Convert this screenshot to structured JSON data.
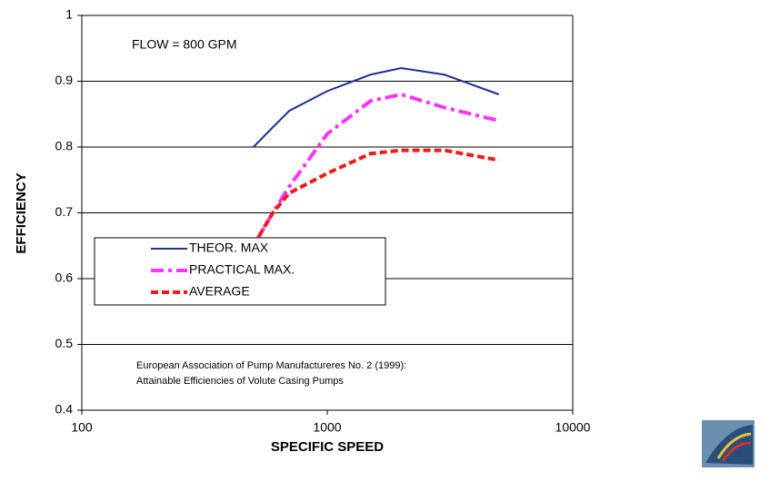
{
  "chart_data": {
    "type": "line",
    "x_label": "SPECIFIC SPEED",
    "y_label": "EFFICIENCY",
    "annotation": "FLOW = 800 GPM",
    "source_note": [
      "European Association of Pump Manufactureres No. 2 (1999):",
      "Attainable Efficiencies of Volute Casing Pumps"
    ],
    "x": [
      500,
      600,
      700,
      1000,
      1500,
      2000,
      3000,
      5000
    ],
    "series": [
      {
        "name": "THEOR. MAX",
        "color": "#1f2f8f",
        "style": "solid",
        "values": [
          0.8,
          0.83,
          0.855,
          0.885,
          0.91,
          0.92,
          0.91,
          0.88
        ]
      },
      {
        "name": "PRACTICAL MAX.",
        "color": "#ff33ff",
        "style": "dashdot",
        "values": [
          0.65,
          0.7,
          0.74,
          0.82,
          0.87,
          0.88,
          0.86,
          0.84
        ]
      },
      {
        "name": "AVERAGE",
        "color": "#ee1c1c",
        "style": "dashed",
        "values": [
          0.65,
          0.7,
          0.73,
          0.76,
          0.79,
          0.795,
          0.795,
          0.78
        ]
      }
    ],
    "xlim": [
      100,
      10000
    ],
    "xticks": [
      100,
      1000,
      10000
    ],
    "xscale": "log",
    "ylim": [
      0.4,
      1
    ],
    "yticks": [
      0.4,
      0.5,
      0.6,
      0.7,
      0.8,
      0.9,
      1
    ],
    "grid": true,
    "legend": "center left"
  }
}
